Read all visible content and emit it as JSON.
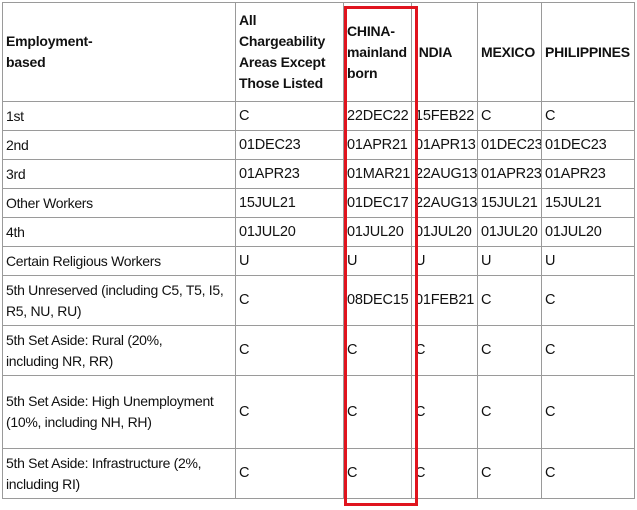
{
  "headers": [
    "Employment-based",
    "All Chargeability Areas Except Those Listed",
    "CHINA-mainland born",
    "INDIA",
    "MEXICO",
    "PHILIPPINES"
  ],
  "rows": [
    [
      "1st",
      "C",
      "22DEC22",
      "15FEB22",
      "C",
      "C"
    ],
    [
      "2nd",
      "01DEC23",
      "01APR21",
      "01APR13",
      "01DEC23",
      "01DEC23"
    ],
    [
      "3rd",
      "01APR23",
      "01MAR21",
      "22AUG13",
      "01APR23",
      "01APR23"
    ],
    [
      "Other Workers",
      "15JUL21",
      "01DEC17",
      "22AUG13",
      "15JUL21",
      "15JUL21"
    ],
    [
      "4th",
      "01JUL20",
      "01JUL20",
      "01JUL20",
      "01JUL20",
      "01JUL20"
    ],
    [
      "Certain Religious Workers",
      "U",
      "U",
      "U",
      "U",
      "U"
    ],
    [
      "5th Unreserved (including C5, T5, I5, R5, NU, RU)",
      "C",
      "08DEC15",
      "01FEB21",
      "C",
      "C"
    ],
    [
      "5th Set Aside: Rural (20%, including NR, RR)",
      "C",
      "C",
      "C",
      "C",
      "C"
    ],
    [
      "5th Set Aside: High Unemployment (10%, including NH, RH)",
      "C",
      "C",
      "C",
      "C",
      "C"
    ],
    [
      "5th Set Aside: Infrastructure (2%, including RI)",
      "C",
      "C",
      "C",
      "C",
      "C"
    ]
  ],
  "highlight_color": "#e0141e"
}
